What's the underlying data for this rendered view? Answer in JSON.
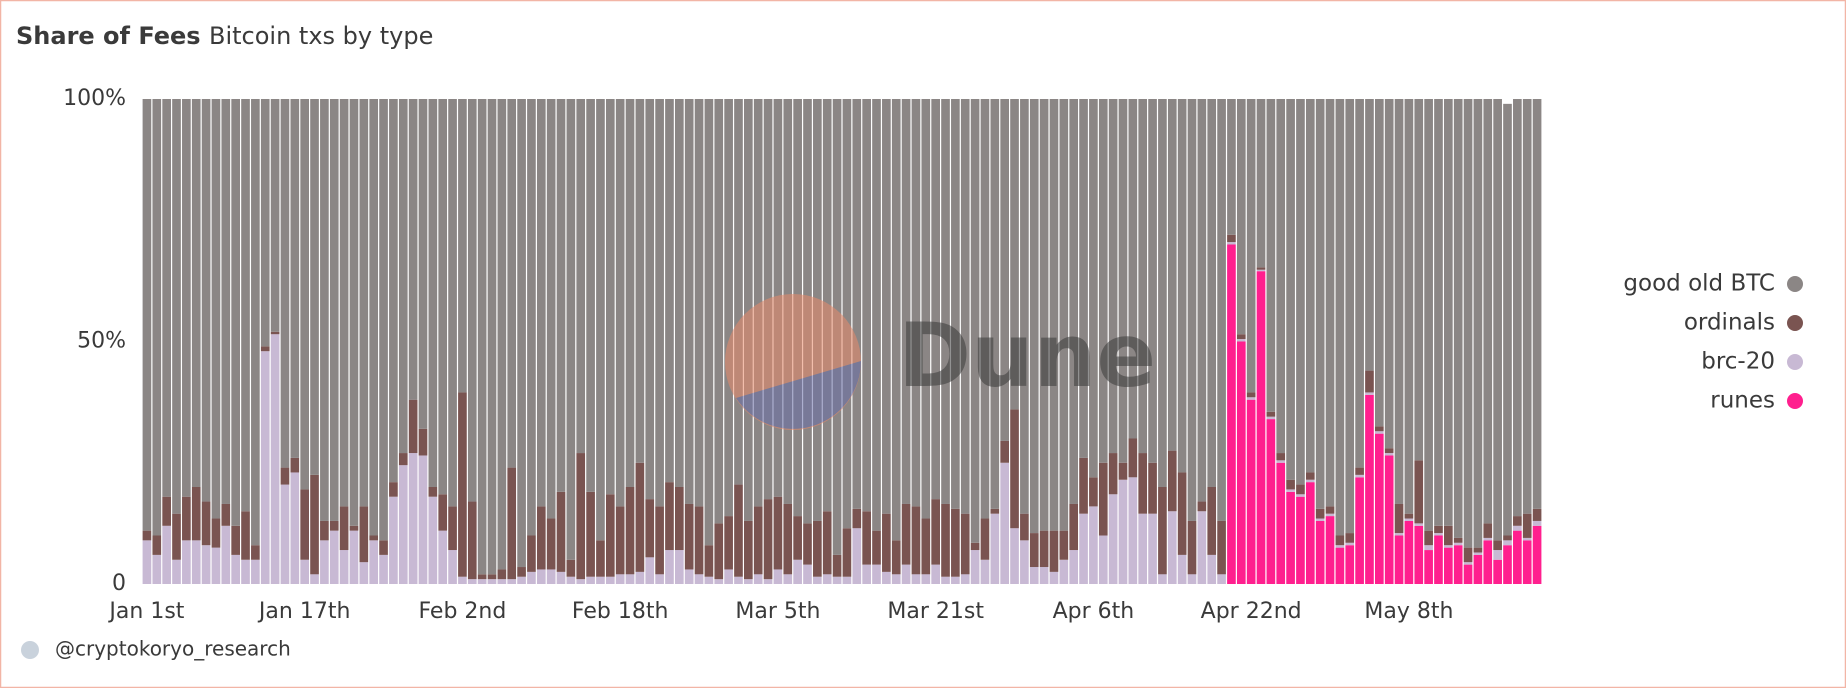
{
  "chart_data": {
    "type": "stacked_bar",
    "title": "Share of Fees",
    "subtitle": "Bitcoin txs by type",
    "footer": "@cryptokoryo_research",
    "watermark": "Dune",
    "categories": [
      "Jan 1st",
      null,
      null,
      null,
      null,
      null,
      null,
      null,
      null,
      null,
      null,
      null,
      null,
      null,
      null,
      null,
      "Jan 17th",
      null,
      null,
      null,
      null,
      null,
      null,
      null,
      null,
      null,
      null,
      null,
      null,
      null,
      null,
      null,
      "Feb 2nd",
      null,
      null,
      null,
      null,
      null,
      null,
      null,
      null,
      null,
      null,
      null,
      null,
      null,
      null,
      null,
      "Feb 18th",
      null,
      null,
      null,
      null,
      null,
      null,
      null,
      null,
      null,
      null,
      null,
      null,
      null,
      null,
      null,
      "Mar 5th",
      null,
      null,
      null,
      null,
      null,
      null,
      null,
      null,
      null,
      null,
      null,
      null,
      null,
      null,
      null,
      "Mar 21st",
      null,
      null,
      null,
      null,
      null,
      null,
      null,
      null,
      null,
      null,
      null,
      null,
      null,
      null,
      null,
      "Apr 6th",
      null,
      null,
      null,
      null,
      null,
      null,
      null,
      null,
      null,
      null,
      null,
      null,
      null,
      null,
      null,
      "Apr 22nd",
      null,
      null,
      null,
      null,
      null,
      null,
      null,
      null,
      null,
      null,
      null,
      null,
      null,
      null,
      null,
      "May 8th",
      null,
      null,
      null,
      null,
      null,
      null,
      null,
      null,
      null,
      null,
      null,
      null,
      null
    ],
    "series": [
      {
        "name": "good old BTC",
        "color": "#8b8685",
        "values": [
          89,
          90,
          82,
          85.5,
          82,
          80,
          83,
          86.5,
          83.5,
          88,
          85,
          92,
          51,
          48,
          76,
          74,
          80.5,
          77.5,
          87,
          87,
          84,
          88,
          84,
          90,
          91,
          79,
          73,
          62,
          68,
          80,
          81.5,
          84,
          60.5,
          83,
          98,
          98,
          97,
          76,
          96.5,
          90,
          84,
          86.5,
          81,
          95,
          73,
          81,
          91,
          81.5,
          84,
          80,
          75,
          82.5,
          84,
          79,
          80,
          83.5,
          84,
          92,
          87.5,
          86,
          79.5,
          87,
          84,
          82.5,
          82,
          83.5,
          86,
          87.5,
          87,
          85,
          94,
          88.5,
          84.5,
          85,
          89,
          85.5,
          91,
          83.5,
          84,
          86.5,
          82.5,
          83.5,
          84.5,
          85.5,
          91.5,
          86.5,
          84.5,
          70.5,
          64,
          85.5,
          89.5,
          89,
          89,
          89,
          83.5,
          74,
          78,
          75,
          73,
          75,
          70,
          73,
          75,
          80,
          72.5,
          77,
          87,
          83,
          80,
          87,
          28,
          48.5,
          60.5,
          34.7,
          64.5,
          73,
          78.5,
          79.5,
          77,
          84.5,
          84,
          90,
          89.5,
          76,
          56,
          67.5,
          72,
          83.5,
          85.5,
          74.5,
          89,
          88,
          88,
          90.5,
          92.5,
          92.5,
          87.5,
          91,
          89,
          86,
          85.5,
          84.5
        ]
      },
      {
        "name": "ordinals",
        "color": "#7a5451",
        "values": [
          2,
          4,
          6,
          9.5,
          9,
          11,
          9,
          6,
          4.5,
          6,
          10,
          3,
          1,
          0.5,
          3.5,
          3,
          14.5,
          20.5,
          4,
          2,
          9,
          1,
          11.5,
          1,
          3,
          3,
          2.5,
          11,
          5.5,
          2,
          7.5,
          9,
          38,
          16,
          1,
          1,
          2,
          23,
          2,
          7.5,
          13,
          10.5,
          16.5,
          3.5,
          26,
          17.5,
          7.5,
          17,
          14,
          18,
          22.5,
          12,
          14,
          14,
          13,
          13.5,
          14,
          6.5,
          11.5,
          11,
          19,
          12,
          14,
          16.5,
          15,
          14.5,
          9,
          8.5,
          11.5,
          13,
          4.5,
          10,
          4,
          11,
          7,
          12,
          7,
          12.5,
          14,
          11.5,
          13.5,
          15,
          14,
          12.5,
          1.5,
          8.5,
          1,
          4.5,
          24.5,
          5.5,
          7,
          7.5,
          8.5,
          6,
          9.5,
          11.5,
          6,
          15,
          8.5,
          3.5,
          8,
          12.5,
          10.5,
          18,
          12.5,
          17,
          11,
          2,
          14,
          11,
          1.5,
          1,
          1,
          0.5,
          1,
          1.5,
          2,
          2,
          1.5,
          2,
          1.5,
          2,
          2,
          1.5,
          4.5,
          1,
          1,
          6,
          1,
          13,
          3,
          1.5,
          4,
          1,
          3,
          1,
          3,
          2,
          1,
          2,
          5,
          2.5
        ]
      },
      {
        "name": "brc-20",
        "color": "#c8b9d4",
        "values": [
          9,
          6,
          12,
          5,
          9,
          9,
          8,
          7.5,
          12,
          6,
          5,
          5,
          48,
          51.5,
          20.5,
          23,
          5,
          2,
          9,
          11,
          7,
          11,
          4.5,
          9,
          6,
          18,
          24.5,
          27,
          26.5,
          18,
          11,
          7,
          1.5,
          1,
          1,
          1,
          1,
          1,
          1.5,
          2.5,
          3,
          3,
          2.5,
          1.5,
          1,
          1.5,
          1.5,
          1.5,
          2,
          2,
          2.5,
          5.5,
          2,
          7,
          7,
          3,
          2,
          1.5,
          1,
          3,
          1.5,
          1,
          2,
          1,
          3,
          2,
          5,
          4,
          1.5,
          2,
          1.5,
          1.5,
          11.5,
          4,
          4,
          2.5,
          2,
          4,
          2,
          2,
          4,
          1.5,
          1.5,
          2,
          7,
          5,
          14.5,
          25,
          11.5,
          9,
          3.5,
          3.5,
          2.5,
          5,
          7,
          14.5,
          16,
          10,
          18.5,
          21.5,
          22,
          14.5,
          14.5,
          2,
          15,
          6,
          2,
          15,
          6,
          2,
          0.5,
          0.5,
          0.5,
          0.3,
          0.5,
          0.5,
          0.5,
          0.5,
          0.5,
          0.5,
          0.5,
          0.5,
          0.5,
          0.5,
          0.5,
          0.5,
          0.5,
          0.5,
          0.5,
          0.5,
          1,
          0.5,
          0.5,
          0.5,
          0.5,
          0.5,
          0.5,
          2,
          1,
          1,
          0.5,
          1
        ]
      },
      {
        "name": "runes",
        "color": "#ff1f8e",
        "values": [
          0,
          0,
          0,
          0,
          0,
          0,
          0,
          0,
          0,
          0,
          0,
          0,
          0,
          0,
          0,
          0,
          0,
          0,
          0,
          0,
          0,
          0,
          0,
          0,
          0,
          0,
          0,
          0,
          0,
          0,
          0,
          0,
          0,
          0,
          0,
          0,
          0,
          0,
          0,
          0,
          0,
          0,
          0,
          0,
          0,
          0,
          0,
          0,
          0,
          0,
          0,
          0,
          0,
          0,
          0,
          0,
          0,
          0,
          0,
          0,
          0,
          0,
          0,
          0,
          0,
          0,
          0,
          0,
          0,
          0,
          0,
          0,
          0,
          0,
          0,
          0,
          0,
          0,
          0,
          0,
          0,
          0,
          0,
          0,
          0,
          0,
          0,
          0,
          0,
          0,
          0,
          0,
          0,
          0,
          0,
          0,
          0,
          0,
          0,
          0,
          0,
          0,
          0,
          0,
          0,
          0,
          0,
          0,
          0,
          0,
          70,
          50,
          38,
          64.5,
          34,
          25,
          19,
          18,
          21,
          13,
          14,
          7.5,
          8,
          22,
          39,
          31,
          26.5,
          10,
          13,
          12,
          7,
          10,
          7.5,
          8,
          4,
          6,
          9,
          5,
          8,
          11,
          9,
          12
        ]
      }
    ],
    "ylim": [
      0,
      100
    ],
    "yticks": [
      0,
      {
        "value": 50,
        "label": "50%"
      },
      {
        "value": 100,
        "label": "100%"
      }
    ],
    "grid": false,
    "legend": "right"
  }
}
